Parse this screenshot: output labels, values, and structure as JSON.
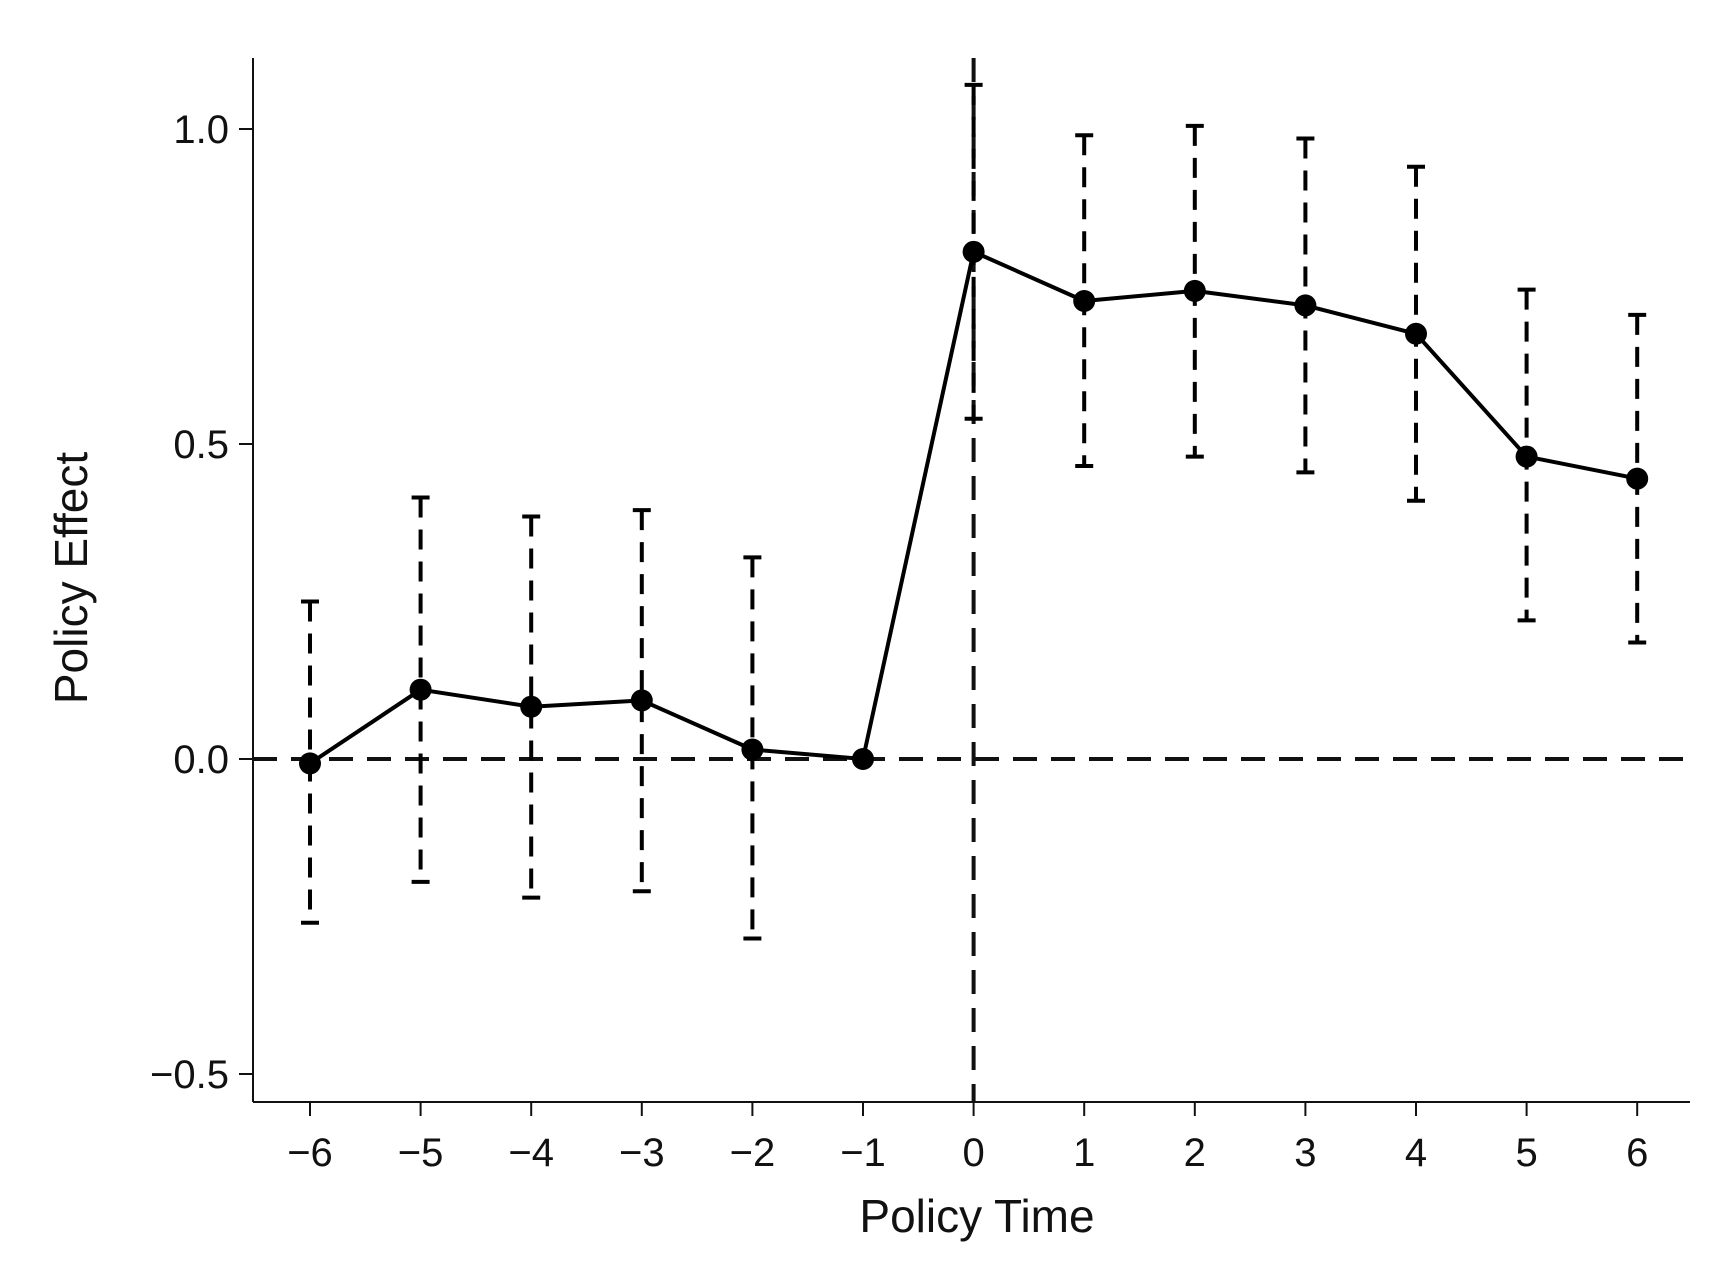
{
  "chart_data": {
    "type": "line",
    "title": "",
    "xlabel": "Policy Time",
    "ylabel": "Policy Effect",
    "xlim": [
      -6.5,
      6.5
    ],
    "ylim": [
      -0.55,
      1.1
    ],
    "x_ticks": [
      -6,
      -5,
      -4,
      -3,
      -2,
      -1,
      0,
      1,
      2,
      3,
      4,
      5,
      6
    ],
    "x_tick_labels": [
      "−6",
      "−5",
      "−4",
      "−3",
      "−2",
      "−1",
      "0",
      "1",
      "2",
      "3",
      "4",
      "5",
      "6"
    ],
    "y_ticks": [
      -0.5,
      0.0,
      0.5,
      1.0
    ],
    "y_tick_labels": [
      "−0.5",
      "0.0",
      "0.5",
      "1.0"
    ],
    "grid": false,
    "reference_lines": [
      {
        "axis": "y",
        "value": 0,
        "style": "dashed"
      },
      {
        "axis": "x",
        "value": 0,
        "style": "dashed"
      }
    ],
    "series": [
      {
        "x": [
          -6,
          -5,
          -4,
          -3,
          -2,
          -1,
          0,
          1,
          2,
          3,
          4,
          5,
          6
        ],
        "y": [
          -0.007,
          0.11,
          0.083,
          0.093,
          0.015,
          0.0,
          0.805,
          0.727,
          0.743,
          0.72,
          0.675,
          0.48,
          0.445
        ],
        "ci_lower": [
          -0.26,
          -0.195,
          -0.22,
          -0.21,
          -0.285,
          null,
          0.54,
          0.465,
          0.48,
          0.455,
          0.41,
          0.22,
          0.185
        ],
        "ci_upper": [
          0.25,
          0.415,
          0.385,
          0.395,
          0.32,
          null,
          1.07,
          0.99,
          1.005,
          0.985,
          0.94,
          0.745,
          0.705
        ],
        "color": "#000000"
      }
    ]
  }
}
